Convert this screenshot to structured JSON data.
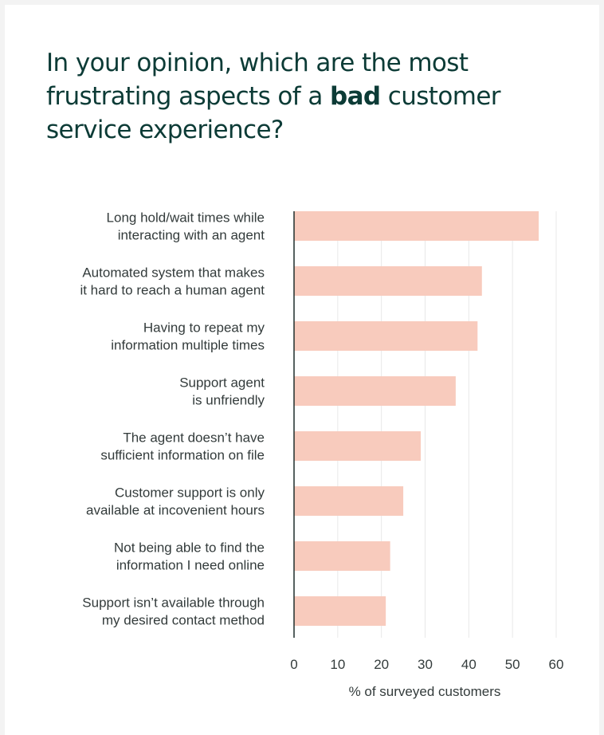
{
  "title": {
    "before": "In your opinion, which are the most frustrating aspects of a ",
    "emphasis": "bad",
    "after": " customer service experience?"
  },
  "chart_data": {
    "type": "bar",
    "orientation": "horizontal",
    "categories": [
      [
        "Long hold/wait times while",
        "interacting with an agent"
      ],
      [
        "Automated system that makes",
        "it hard to reach a human agent"
      ],
      [
        "Having to repeat my",
        "information multiple times"
      ],
      [
        "Support agent",
        "is unfriendly"
      ],
      [
        "The agent doesn’t have",
        "sufficient information on file"
      ],
      [
        "Customer support is only",
        "available at incovenient hours"
      ],
      [
        "Not being able to find the",
        "information I need online"
      ],
      [
        "Support isn’t available through",
        "my desired contact method"
      ]
    ],
    "values": [
      56,
      43,
      42,
      37,
      29,
      25,
      22,
      21
    ],
    "xlabel": "% of surveyed customers",
    "xlim": [
      0,
      60
    ],
    "xticks": [
      0,
      10,
      20,
      30,
      40,
      50,
      60
    ],
    "grid": "vertical",
    "bar_color": "#f8cbbd",
    "gridline_color": "#e8e8e8",
    "axis_color": "#1f2d2b",
    "title_color": "#0c3b36"
  }
}
